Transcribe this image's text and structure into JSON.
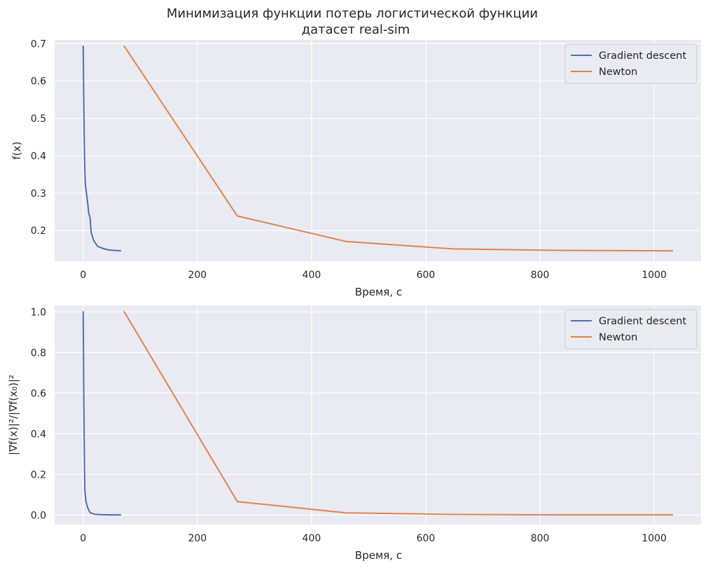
{
  "figure": {
    "title_line1": "Минимизация функции потерь логистической функции",
    "title_line2": "датасет real-sim"
  },
  "chart_data": [
    {
      "type": "line",
      "xlabel": "Время, с",
      "ylabel": "f(x)",
      "xlim": [
        -50,
        1082
      ],
      "ylim": [
        0.118,
        0.71
      ],
      "xticks": [
        0,
        200,
        400,
        600,
        800,
        1000
      ],
      "yticks": [
        0.2,
        0.3,
        0.4,
        0.5,
        0.6,
        0.7
      ],
      "ytick_labels": [
        "0.2",
        "0.3",
        "0.4",
        "0.5",
        "0.6",
        "0.7"
      ],
      "grid": true,
      "legend_position": "top-right",
      "series": [
        {
          "name": "Gradient descent",
          "color": "#4c72b0",
          "x": [
            0,
            1,
            2,
            3,
            4,
            5,
            7,
            9,
            10,
            12,
            14,
            18,
            25,
            35,
            45,
            55,
            65
          ],
          "y": [
            0.693,
            0.55,
            0.43,
            0.355,
            0.32,
            0.31,
            0.285,
            0.258,
            0.245,
            0.235,
            0.195,
            0.175,
            0.158,
            0.152,
            0.148,
            0.147,
            0.146
          ]
        },
        {
          "name": "Newton",
          "color": "#dd8452",
          "x": [
            72,
            270,
            460,
            648,
            838,
            1032
          ],
          "y": [
            0.693,
            0.239,
            0.171,
            0.151,
            0.147,
            0.146
          ]
        }
      ]
    },
    {
      "type": "line",
      "xlabel": "Время, с",
      "ylabel": "|∇f(x)|²/|∇f(x₀)|²",
      "xlim": [
        -50,
        1082
      ],
      "ylim": [
        -0.047,
        1.032
      ],
      "xticks": [
        0,
        200,
        400,
        600,
        800,
        1000
      ],
      "yticks": [
        0.0,
        0.2,
        0.4,
        0.6,
        0.8,
        1.0
      ],
      "ytick_labels": [
        "0.0",
        "0.2",
        "0.4",
        "0.6",
        "0.8",
        "1.0"
      ],
      "grid": true,
      "legend_position": "top-right",
      "series": [
        {
          "name": "Gradient descent",
          "color": "#4c72b0",
          "x": [
            0,
            1,
            2,
            3,
            5,
            8,
            12,
            20,
            30,
            45,
            65
          ],
          "y": [
            1.0,
            0.6,
            0.3,
            0.12,
            0.065,
            0.035,
            0.012,
            0.004,
            0.002,
            0.001,
            0.001
          ]
        },
        {
          "name": "Newton",
          "color": "#dd8452",
          "x": [
            72,
            270,
            460,
            648,
            838,
            1032
          ],
          "y": [
            1.0,
            0.066,
            0.011,
            0.003,
            0.001,
            0.001
          ]
        }
      ]
    }
  ]
}
